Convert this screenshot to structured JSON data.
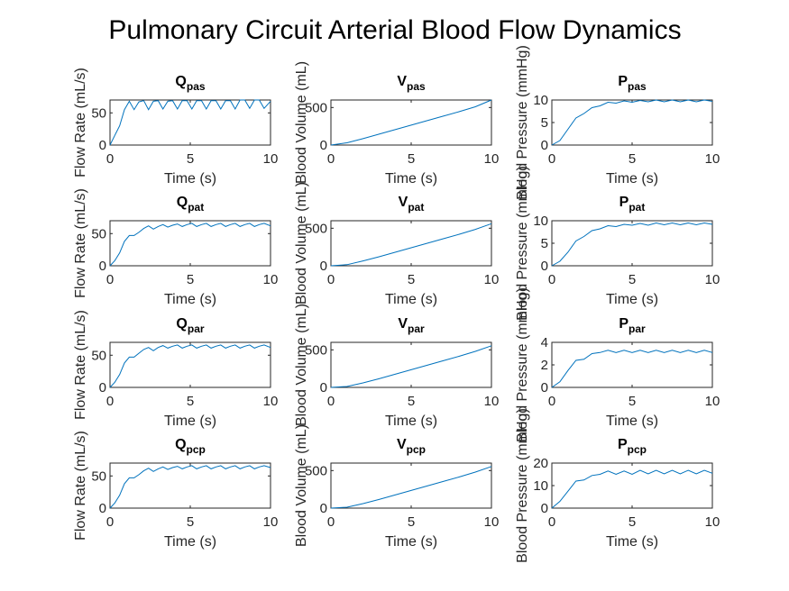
{
  "figure_title": "Pulmonary Circuit Arterial Blood Flow Dynamics",
  "series_color": "#0072bd",
  "chart_data": [
    {
      "type": "line",
      "title": "Q",
      "subscript": "pas",
      "xlabel": "Time (s)",
      "ylabel": "Flow Rate (mL/s)",
      "xlim": [
        0,
        10
      ],
      "ylim": [
        0,
        70
      ],
      "xticks": [
        0,
        5,
        10
      ],
      "yticks": [
        0,
        50
      ],
      "x": [
        0,
        0.3,
        0.6,
        0.9,
        1.2,
        1.5,
        1.8,
        2.1,
        2.4,
        2.7,
        3.0,
        3.3,
        3.6,
        3.9,
        4.2,
        4.5,
        4.8,
        5.1,
        5.4,
        5.7,
        6.0,
        6.3,
        6.6,
        6.9,
        7.2,
        7.5,
        7.8,
        8.1,
        8.4,
        8.7,
        9.0,
        9.3,
        9.6,
        10.0
      ],
      "y": [
        0,
        15,
        30,
        55,
        68,
        55,
        67,
        69,
        55,
        68,
        69,
        56,
        68,
        69,
        56,
        69,
        69,
        56,
        69,
        69,
        56,
        69,
        69,
        56,
        69,
        69,
        56,
        70,
        70,
        57,
        70,
        70,
        57,
        68
      ]
    },
    {
      "type": "line",
      "title": "V",
      "subscript": "pas",
      "xlabel": "Time (s)",
      "ylabel": "Blood Volume (mL)",
      "xlim": [
        0,
        10
      ],
      "ylim": [
        0,
        600
      ],
      "xticks": [
        0,
        5,
        10
      ],
      "yticks": [
        0,
        500
      ],
      "x": [
        0,
        1,
        2,
        3,
        4,
        5,
        6,
        7,
        8,
        9,
        10
      ],
      "y": [
        0,
        30,
        85,
        145,
        205,
        265,
        325,
        385,
        445,
        510,
        600
      ]
    },
    {
      "type": "line",
      "title": "P",
      "subscript": "pas",
      "xlabel": "Time (s)",
      "ylabel": "Blood Pressure (mmHg)",
      "xlim": [
        0,
        10
      ],
      "ylim": [
        0,
        10
      ],
      "xticks": [
        0,
        5,
        10
      ],
      "yticks": [
        0,
        5,
        10
      ],
      "x": [
        0,
        0.5,
        1.0,
        1.5,
        2.0,
        2.5,
        3.0,
        3.5,
        4.0,
        4.5,
        5.0,
        5.5,
        6.0,
        6.5,
        7.0,
        7.5,
        8.0,
        8.5,
        9.0,
        9.5,
        10.0
      ],
      "y": [
        0,
        1,
        3.5,
        6,
        7,
        8.3,
        8.7,
        9.5,
        9.3,
        9.8,
        9.5,
        9.9,
        9.6,
        10,
        9.6,
        10,
        9.6,
        10,
        9.6,
        10,
        9.7
      ]
    },
    {
      "type": "line",
      "title": "Q",
      "subscript": "pat",
      "xlabel": "Time (s)",
      "ylabel": "Flow Rate (mL/s)",
      "xlim": [
        0,
        10
      ],
      "ylim": [
        0,
        70
      ],
      "xticks": [
        0,
        5,
        10
      ],
      "yticks": [
        0,
        50
      ],
      "x": [
        0,
        0.3,
        0.6,
        0.9,
        1.2,
        1.5,
        1.8,
        2.1,
        2.4,
        2.7,
        3.0,
        3.3,
        3.6,
        3.9,
        4.2,
        4.5,
        4.8,
        5.1,
        5.4,
        5.7,
        6.0,
        6.3,
        6.6,
        6.9,
        7.2,
        7.5,
        7.8,
        8.1,
        8.4,
        8.7,
        9.0,
        9.3,
        9.6,
        10.0
      ],
      "y": [
        0,
        8,
        20,
        38,
        47,
        47,
        52,
        58,
        62,
        57,
        61,
        64,
        60,
        63,
        65,
        61,
        64,
        66,
        61,
        64,
        66,
        61,
        64,
        66,
        61,
        64,
        66,
        61,
        64,
        66,
        61,
        64,
        66,
        62
      ]
    },
    {
      "type": "line",
      "title": "V",
      "subscript": "pat",
      "xlabel": "Time (s)",
      "ylabel": "Blood Volume (mL)",
      "xlim": [
        0,
        10
      ],
      "ylim": [
        0,
        600
      ],
      "xticks": [
        0,
        5,
        10
      ],
      "yticks": [
        0,
        500
      ],
      "x": [
        0,
        1,
        2,
        3,
        4,
        5,
        6,
        7,
        8,
        9,
        10
      ],
      "y": [
        0,
        15,
        65,
        120,
        180,
        240,
        300,
        360,
        420,
        485,
        560
      ]
    },
    {
      "type": "line",
      "title": "P",
      "subscript": "pat",
      "xlabel": "Time (s)",
      "ylabel": "Blood Pressure (mmHg)",
      "xlim": [
        0,
        10
      ],
      "ylim": [
        0,
        10
      ],
      "xticks": [
        0,
        5,
        10
      ],
      "yticks": [
        0,
        5,
        10
      ],
      "x": [
        0,
        0.5,
        1.0,
        1.5,
        2.0,
        2.5,
        3.0,
        3.5,
        4.0,
        4.5,
        5.0,
        5.5,
        6.0,
        6.5,
        7.0,
        7.5,
        8.0,
        8.5,
        9.0,
        9.5,
        10.0
      ],
      "y": [
        0,
        1,
        3,
        5.5,
        6.5,
        7.8,
        8.2,
        8.9,
        8.7,
        9.2,
        9,
        9.4,
        9,
        9.5,
        9.1,
        9.5,
        9.1,
        9.5,
        9.1,
        9.5,
        9.2
      ]
    },
    {
      "type": "line",
      "title": "Q",
      "subscript": "par",
      "xlabel": "Time (s)",
      "ylabel": "Flow Rate (mL/s)",
      "xlim": [
        0,
        10
      ],
      "ylim": [
        0,
        70
      ],
      "xticks": [
        0,
        5,
        10
      ],
      "yticks": [
        0,
        50
      ],
      "x": [
        0,
        0.3,
        0.6,
        0.9,
        1.2,
        1.5,
        1.8,
        2.1,
        2.4,
        2.7,
        3.0,
        3.3,
        3.6,
        3.9,
        4.2,
        4.5,
        4.8,
        5.1,
        5.4,
        5.7,
        6.0,
        6.3,
        6.6,
        6.9,
        7.2,
        7.5,
        7.8,
        8.1,
        8.4,
        8.7,
        9.0,
        9.3,
        9.6,
        10.0
      ],
      "y": [
        0,
        8,
        20,
        38,
        47,
        47,
        53,
        59,
        62,
        57,
        62,
        65,
        61,
        64,
        66,
        61,
        64,
        66,
        61,
        64,
        66,
        61,
        64,
        66,
        61,
        64,
        66,
        61,
        64,
        66,
        61,
        64,
        66,
        62
      ]
    },
    {
      "type": "line",
      "title": "V",
      "subscript": "par",
      "xlabel": "Time (s)",
      "ylabel": "Blood Volume (mL)",
      "xlim": [
        0,
        10
      ],
      "ylim": [
        0,
        600
      ],
      "xticks": [
        0,
        5,
        10
      ],
      "yticks": [
        0,
        500
      ],
      "x": [
        0,
        1,
        2,
        3,
        4,
        5,
        6,
        7,
        8,
        9,
        10
      ],
      "y": [
        0,
        12,
        60,
        115,
        175,
        235,
        295,
        355,
        415,
        480,
        555
      ]
    },
    {
      "type": "line",
      "title": "P",
      "subscript": "par",
      "xlabel": "Time (s)",
      "ylabel": "Blood Pressure (mmHg)",
      "xlim": [
        0,
        10
      ],
      "ylim": [
        0,
        4
      ],
      "xticks": [
        0,
        5,
        10
      ],
      "yticks": [
        0,
        2,
        4
      ],
      "x": [
        0,
        0.5,
        1.0,
        1.5,
        2.0,
        2.5,
        3.0,
        3.5,
        4.0,
        4.5,
        5.0,
        5.5,
        6.0,
        6.5,
        7.0,
        7.5,
        8.0,
        8.5,
        9.0,
        9.5,
        10.0
      ],
      "y": [
        0,
        0.5,
        1.5,
        2.4,
        2.5,
        3.0,
        3.1,
        3.3,
        3.1,
        3.3,
        3.1,
        3.3,
        3.1,
        3.3,
        3.1,
        3.3,
        3.1,
        3.3,
        3.1,
        3.3,
        3.1
      ]
    },
    {
      "type": "line",
      "title": "Q",
      "subscript": "pcp",
      "xlabel": "Time (s)",
      "ylabel": "Flow Rate (mL/s)",
      "xlim": [
        0,
        10
      ],
      "ylim": [
        0,
        70
      ],
      "xticks": [
        0,
        5,
        10
      ],
      "yticks": [
        0,
        50
      ],
      "x": [
        0,
        0.3,
        0.6,
        0.9,
        1.2,
        1.5,
        1.8,
        2.1,
        2.4,
        2.7,
        3.0,
        3.3,
        3.6,
        3.9,
        4.2,
        4.5,
        4.8,
        5.1,
        5.4,
        5.7,
        6.0,
        6.3,
        6.6,
        6.9,
        7.2,
        7.5,
        7.8,
        8.1,
        8.4,
        8.7,
        9.0,
        9.3,
        9.6,
        10.0
      ],
      "y": [
        0,
        8,
        20,
        38,
        47,
        47,
        52,
        58,
        62,
        57,
        61,
        64,
        60,
        63,
        65,
        61,
        64,
        66,
        61,
        64,
        66,
        61,
        64,
        66,
        61,
        64,
        66,
        61,
        64,
        66,
        61,
        64,
        66,
        63
      ]
    },
    {
      "type": "line",
      "title": "V",
      "subscript": "pcp",
      "xlabel": "Time (s)",
      "ylabel": "Blood Volume (mL)",
      "xlim": [
        0,
        10
      ],
      "ylim": [
        0,
        600
      ],
      "xticks": [
        0,
        5,
        10
      ],
      "yticks": [
        0,
        500
      ],
      "x": [
        0,
        1,
        2,
        3,
        4,
        5,
        6,
        7,
        8,
        9,
        10
      ],
      "y": [
        0,
        12,
        60,
        115,
        175,
        235,
        295,
        355,
        415,
        480,
        555
      ]
    },
    {
      "type": "line",
      "title": "P",
      "subscript": "pcp",
      "xlabel": "Time (s)",
      "ylabel": "Blood Pressure (mmHg)",
      "xlim": [
        0,
        10
      ],
      "ylim": [
        0,
        20
      ],
      "xticks": [
        0,
        5,
        10
      ],
      "yticks": [
        0,
        10,
        20
      ],
      "x": [
        0,
        0.5,
        1.0,
        1.5,
        2.0,
        2.5,
        3.0,
        3.5,
        4.0,
        4.5,
        5.0,
        5.5,
        6.0,
        6.5,
        7.0,
        7.5,
        8.0,
        8.5,
        9.0,
        9.5,
        10.0
      ],
      "y": [
        0,
        3,
        7.5,
        12,
        12.5,
        14.5,
        15,
        16.5,
        15,
        16.5,
        15,
        16.8,
        15.2,
        16.8,
        15.2,
        16.8,
        15.2,
        16.8,
        15.2,
        16.8,
        15.5
      ]
    }
  ]
}
